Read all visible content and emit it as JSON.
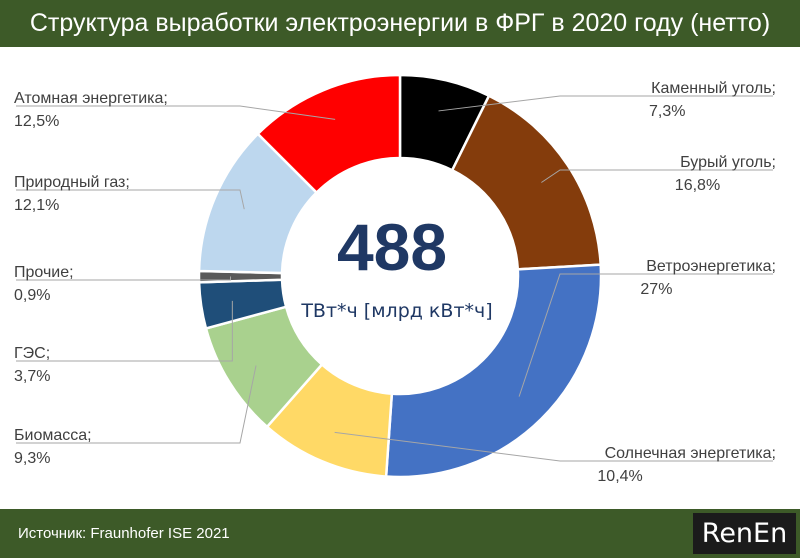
{
  "title": "Структура выработки электроэнергии в ФРГ в 2020 году (нетто)",
  "footer": {
    "source": "Источник: Fraunhofer ISE 2021",
    "logo": {
      "part1": "Ren",
      "part2": "En"
    }
  },
  "chart_data": {
    "type": "pie",
    "subtype": "donut",
    "center_value": "488",
    "center_unit": "ТВт*ч [млрд кВт*ч]",
    "slices": [
      {
        "name": "Каменный уголь;",
        "value": 7.3,
        "label": "7,3%",
        "color": "#000000"
      },
      {
        "name": "Бурый уголь;",
        "value": 16.8,
        "label": "16,8%",
        "color": "#843c0c"
      },
      {
        "name": "Ветроэнергетика;",
        "value": 27.0,
        "label": "27%",
        "color": "#4472c4"
      },
      {
        "name": "Солнечная энергетика;",
        "value": 10.4,
        "label": "10,4%",
        "color": "#ffd966"
      },
      {
        "name": "Биомасса;",
        "value": 9.3,
        "label": "9,3%",
        "color": "#a9d18e"
      },
      {
        "name": "ГЭС;",
        "value": 3.7,
        "label": "3,7%",
        "color": "#1f4e79"
      },
      {
        "name": "Прочие;",
        "value": 0.9,
        "label": "0,9%",
        "color": "#595959"
      },
      {
        "name": "Природный газ;",
        "value": 12.1,
        "label": "12,1%",
        "color": "#bdd7ee"
      },
      {
        "name": "Атомная энергетика;",
        "value": 12.5,
        "label": "12,5%",
        "color": "#ff0000"
      }
    ]
  }
}
